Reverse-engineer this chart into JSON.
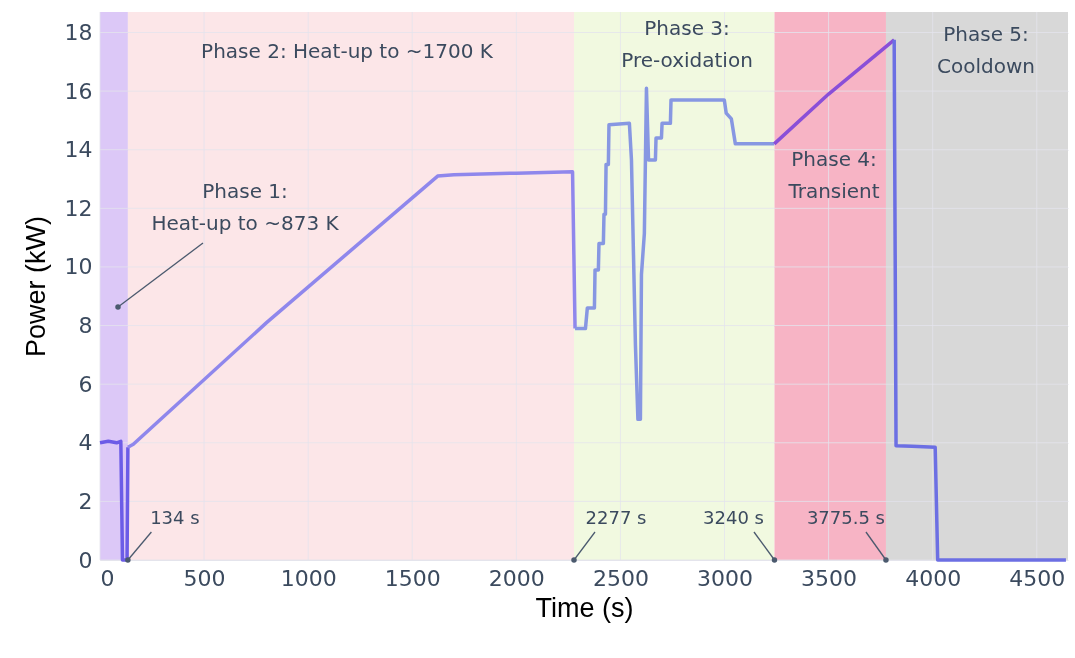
{
  "chart_data": {
    "type": "line",
    "xlabel": "Time (s)",
    "ylabel": "Power (kW)",
    "xlim": [
      0,
      4650
    ],
    "ylim": [
      0,
      18.7
    ],
    "xticks": [
      0,
      500,
      1000,
      1500,
      2000,
      2500,
      3000,
      3500,
      4000,
      4500
    ],
    "yticks": [
      0,
      2,
      4,
      6,
      8,
      10,
      12,
      14,
      16,
      18
    ],
    "grid": true,
    "line_style": "solid",
    "marker": "none",
    "series": [
      {
        "color": "#6c5ce7",
        "x": [
          0,
          40,
          80,
          100,
          108,
          130,
          134
        ],
        "values": [
          4.0,
          4.05,
          4.0,
          4.05,
          0,
          0,
          3.85
        ]
      },
      {
        "color": "#8f87ec",
        "x": [
          134,
          160,
          800,
          1622,
          1700,
          2000,
          2270,
          2282
        ],
        "values": [
          3.85,
          3.95,
          8.1,
          13.1,
          13.15,
          13.2,
          13.25,
          7.9
        ]
      },
      {
        "color": "#8797e2",
        "x": [
          2282,
          2332,
          2341,
          2375,
          2378,
          2394,
          2397,
          2418,
          2421,
          2428,
          2431,
          2442,
          2445,
          2543,
          2553,
          2572,
          2584,
          2596,
          2601,
          2615,
          2625,
          2635,
          2668,
          2671,
          2697,
          2700,
          2740,
          2743,
          2999,
          3008,
          3033,
          3052,
          3239
        ],
        "values": [
          7.9,
          7.9,
          8.6,
          8.6,
          9.9,
          9.9,
          10.8,
          10.8,
          11.8,
          11.8,
          13.5,
          13.5,
          14.85,
          14.9,
          13.65,
          7.35,
          4.8,
          4.8,
          9.75,
          11.15,
          16.1,
          13.65,
          13.65,
          14.4,
          14.4,
          14.9,
          14.9,
          15.7,
          15.7,
          15.25,
          15.05,
          14.2,
          14.2
        ]
      },
      {
        "color": "#8a4fd8",
        "x": [
          3239,
          3500,
          3815
        ],
        "values": [
          14.2,
          15.9,
          17.75
        ]
      },
      {
        "color": "#6c6fe3",
        "x": [
          3815,
          3824,
          3900,
          4012,
          4024,
          4300,
          4640
        ],
        "values": [
          17.75,
          3.9,
          3.88,
          3.85,
          0,
          0,
          0
        ]
      }
    ],
    "bands": [
      {
        "axis": "x",
        "from": 0,
        "to": 134,
        "color": "#dcc8f7",
        "label": "Phase 1:\nHeat-up to ~873 K"
      },
      {
        "axis": "x",
        "from": 134,
        "to": 2277,
        "color": "#fce6e8",
        "label": "Phase 2: Heat-up to ~1700 K"
      },
      {
        "axis": "x",
        "from": 2277,
        "to": 3240,
        "color": "#f1f9e0",
        "label": "Phase 3:\nPre-oxidation"
      },
      {
        "axis": "x",
        "from": 3240,
        "to": 3775.5,
        "color": "#f7b4c5",
        "label": "Phase 4:\nTransient"
      },
      {
        "axis": "x",
        "from": 3775.5,
        "to": 4650,
        "color": "#d8d8d8",
        "label": "Phase 5:\nCooldown"
      }
    ],
    "annotations": [
      {
        "text": "134 s",
        "x": 134,
        "y": 0
      },
      {
        "text": "2277 s",
        "x": 2277,
        "y": 0
      },
      {
        "text": "3240 s",
        "x": 3240,
        "y": 0
      },
      {
        "text": "3775.5 s",
        "x": 3775.5,
        "y": 0
      }
    ]
  }
}
